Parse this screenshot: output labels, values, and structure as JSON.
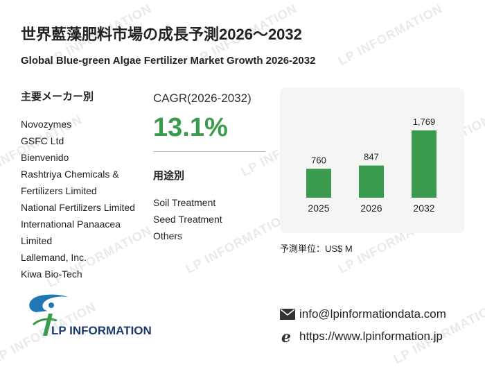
{
  "header": {
    "title_jp": "世界藍藻肥料市場の成長予測2026～2032",
    "title_en": "Global Blue-green Algae Fertilizer Market Growth 2026-2032"
  },
  "manufacturers": {
    "heading": "主要メーカー別",
    "items": [
      "Novozymes",
      "GSFC Ltd",
      "Bienvenido",
      "Rashtriya Chemicals &",
      "Fertilizers Limited",
      "National Fertilizers Limited",
      "International Panaacea",
      "Limited",
      "Lallemand, Inc.",
      "Kiwa Bio-Tech"
    ]
  },
  "cagr": {
    "label": "CAGR(2026-2032)",
    "value": "13.1%"
  },
  "applications": {
    "heading": "用途別",
    "items": [
      "Soil Treatment",
      "Seed Treatment",
      "Others"
    ]
  },
  "chart_data": {
    "type": "bar",
    "categories": [
      "2025",
      "2026",
      "2032"
    ],
    "values": [
      760,
      847,
      1769
    ],
    "value_labels": [
      "760",
      "847",
      "1,769"
    ],
    "bar_color": "#3a9b4f",
    "ylim": [
      0,
      1769
    ]
  },
  "unit_label": "予測単位：US$ M",
  "contact": {
    "email": "info@lpinformationdata.com",
    "website": "https://www.lpinformation.jp"
  },
  "logo": {
    "text": "LP INFORMATION"
  },
  "watermark": "LP INFORMATION",
  "colors": {
    "accent": "#3a9b4f",
    "panel": "#f4f6f4",
    "logo_blue": "#1f77b4"
  }
}
